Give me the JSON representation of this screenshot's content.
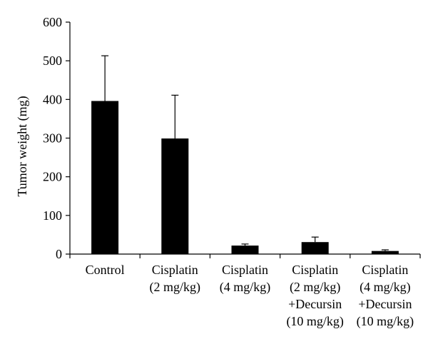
{
  "chart_data": {
    "type": "bar",
    "title": "",
    "ylabel": "Tumor weight (mg)",
    "xlabel": "",
    "ylim": [
      0,
      600
    ],
    "yticks": [
      0,
      100,
      200,
      300,
      400,
      500,
      600
    ],
    "categories": [
      [
        "Control"
      ],
      [
        "Cisplatin",
        "(2 mg/kg)"
      ],
      [
        "Cisplatin",
        "(4 mg/kg)"
      ],
      [
        "Cisplatin",
        "(2 mg/kg)",
        "+Decursin",
        "(10 mg/kg)"
      ],
      [
        "Cisplatin",
        "(4 mg/kg)",
        "+Decursin",
        "(10 mg/kg)"
      ]
    ],
    "series": [
      {
        "values": [
          396,
          299,
          22,
          31,
          8
        ],
        "error_upper": [
          117,
          112,
          4,
          13,
          3
        ]
      }
    ],
    "colors": {
      "bar": "#000000",
      "axis": "#000000",
      "background": "#ffffff"
    },
    "grid": false,
    "legend": "none"
  }
}
